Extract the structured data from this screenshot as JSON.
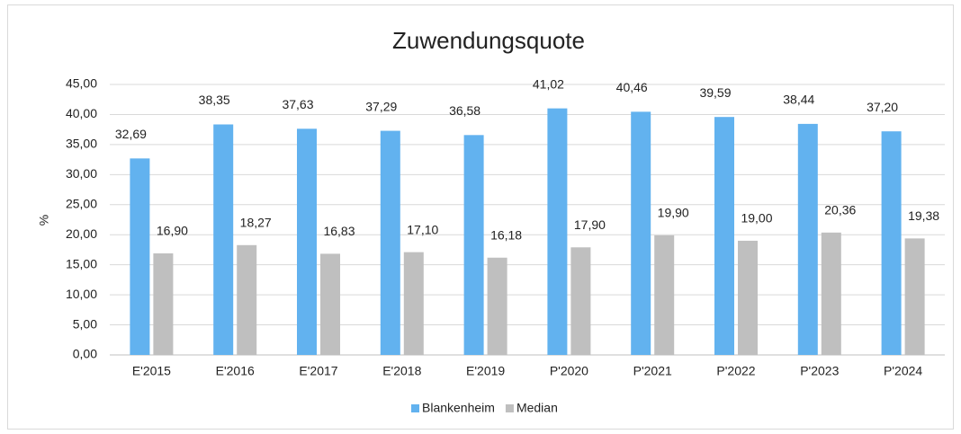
{
  "chart_data": {
    "type": "bar",
    "title": "Zuwendungsquote",
    "y_label": "%",
    "categories": [
      "E'2015",
      "E'2016",
      "E'2017",
      "E'2018",
      "E'2019",
      "P'2020",
      "P'2021",
      "P'2022",
      "P'2023",
      "P'2024"
    ],
    "series": [
      {
        "name": "Blankenheim",
        "color": "#62b2ef",
        "values": [
          32.69,
          38.35,
          37.63,
          37.29,
          36.58,
          41.02,
          40.46,
          39.59,
          38.44,
          37.2
        ],
        "value_labels": [
          "32,69",
          "38,35",
          "37,63",
          "37,29",
          "36,58",
          "41,02",
          "40,46",
          "39,59",
          "38,44",
          "37,20"
        ]
      },
      {
        "name": "Median",
        "color": "#bfbfbf",
        "values": [
          16.9,
          18.27,
          16.83,
          17.1,
          16.18,
          17.9,
          19.9,
          19.0,
          20.36,
          19.38
        ],
        "value_labels": [
          "16,90",
          "18,27",
          "16,83",
          "17,10",
          "16,18",
          "17,90",
          "19,90",
          "19,00",
          "20,36",
          "19,38"
        ]
      }
    ],
    "ylim": [
      0,
      45
    ],
    "yticks": [
      {
        "value": 0,
        "label": "0,00"
      },
      {
        "value": 5,
        "label": "5,00"
      },
      {
        "value": 10,
        "label": "10,00"
      },
      {
        "value": 15,
        "label": "15,00"
      },
      {
        "value": 20,
        "label": "20,00"
      },
      {
        "value": 25,
        "label": "25,00"
      },
      {
        "value": 30,
        "label": "30,00"
      },
      {
        "value": 35,
        "label": "35,00"
      },
      {
        "value": 40,
        "label": "40,00"
      },
      {
        "value": 45,
        "label": "45,00"
      }
    ],
    "grid": true,
    "legend": "bottom"
  }
}
